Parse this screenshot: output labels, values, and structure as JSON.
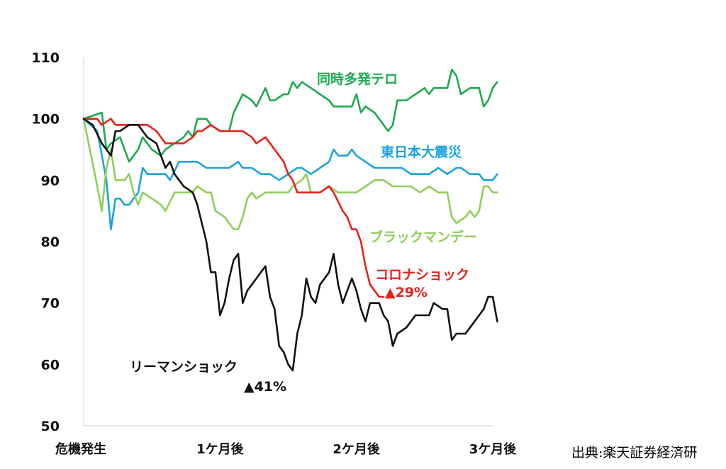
{
  "chart_data": {
    "type": "line",
    "xlabel": "",
    "ylabel": "",
    "xlim": [
      0,
      90
    ],
    "ylim": [
      50,
      110
    ],
    "yticks": [
      50,
      60,
      70,
      80,
      90,
      100,
      110
    ],
    "xticks": [
      {
        "x": 0,
        "label": "危機発生"
      },
      {
        "x": 30,
        "label": "1ケ月後"
      },
      {
        "x": 60,
        "label": "2ケ月後"
      },
      {
        "x": 90,
        "label": "3ケ月後"
      }
    ],
    "grid": false,
    "series": [
      {
        "name": "同時多発テロ",
        "color": "#1fa84f",
        "points": [
          [
            0,
            100
          ],
          [
            4,
            101
          ],
          [
            5,
            95
          ],
          [
            6,
            96
          ],
          [
            8,
            97
          ],
          [
            10,
            93
          ],
          [
            12,
            95
          ],
          [
            13,
            97
          ],
          [
            15,
            95
          ],
          [
            17,
            94
          ],
          [
            18,
            95
          ],
          [
            20,
            96
          ],
          [
            22,
            97
          ],
          [
            23,
            98
          ],
          [
            24,
            97
          ],
          [
            25,
            100
          ],
          [
            26,
            100
          ],
          [
            27,
            100
          ],
          [
            28,
            99
          ],
          [
            30,
            98
          ],
          [
            32,
            98
          ],
          [
            33,
            101
          ],
          [
            35,
            104
          ],
          [
            37,
            103
          ],
          [
            38,
            102
          ],
          [
            40,
            105
          ],
          [
            41,
            103
          ],
          [
            42,
            103
          ],
          [
            44,
            104
          ],
          [
            45,
            104
          ],
          [
            46,
            106
          ],
          [
            47,
            105
          ],
          [
            48,
            106
          ],
          [
            50,
            105
          ],
          [
            52,
            104
          ],
          [
            54,
            103
          ],
          [
            55,
            102
          ],
          [
            57,
            102
          ],
          [
            59,
            102
          ],
          [
            60,
            104
          ],
          [
            61,
            101
          ],
          [
            62,
            102
          ],
          [
            64,
            101
          ],
          [
            66,
            99
          ],
          [
            67,
            98
          ],
          [
            68,
            99
          ],
          [
            69,
            103
          ],
          [
            71,
            103
          ],
          [
            73,
            104
          ],
          [
            75,
            105
          ],
          [
            76,
            104
          ],
          [
            77,
            105
          ],
          [
            79,
            105
          ],
          [
            80,
            105
          ],
          [
            81,
            108
          ],
          [
            82,
            107
          ],
          [
            83,
            104
          ],
          [
            85,
            105
          ],
          [
            87,
            105
          ],
          [
            88,
            102
          ],
          [
            89,
            103
          ],
          [
            90,
            105
          ],
          [
            91,
            106
          ]
        ]
      },
      {
        "name": "東日本大震災",
        "color": "#1aa3e0",
        "points": [
          [
            0,
            100
          ],
          [
            3,
            98
          ],
          [
            5,
            90
          ],
          [
            6,
            82
          ],
          [
            7,
            87
          ],
          [
            8,
            87
          ],
          [
            9,
            86
          ],
          [
            10,
            86
          ],
          [
            12,
            88
          ],
          [
            13,
            92
          ],
          [
            14,
            91
          ],
          [
            15,
            91
          ],
          [
            17,
            91
          ],
          [
            18,
            91
          ],
          [
            19,
            90
          ],
          [
            21,
            93
          ],
          [
            24,
            93
          ],
          [
            25,
            93
          ],
          [
            27,
            92
          ],
          [
            30,
            92
          ],
          [
            32,
            92
          ],
          [
            34,
            93
          ],
          [
            35,
            92
          ],
          [
            37,
            92
          ],
          [
            39,
            91
          ],
          [
            41,
            91
          ],
          [
            43,
            90
          ],
          [
            45,
            91
          ],
          [
            47,
            92
          ],
          [
            48,
            92
          ],
          [
            50,
            91
          ],
          [
            52,
            92
          ],
          [
            54,
            93
          ],
          [
            55,
            95
          ],
          [
            56,
            94
          ],
          [
            58,
            94
          ],
          [
            59,
            95
          ],
          [
            60,
            94
          ],
          [
            62,
            93
          ],
          [
            64,
            92
          ],
          [
            66,
            92
          ],
          [
            67,
            92
          ],
          [
            69,
            92
          ],
          [
            70,
            92
          ],
          [
            72,
            91
          ],
          [
            74,
            91
          ],
          [
            76,
            91
          ],
          [
            78,
            92
          ],
          [
            80,
            91
          ],
          [
            82,
            92
          ],
          [
            83,
            92
          ],
          [
            85,
            91
          ],
          [
            87,
            91
          ],
          [
            88,
            90
          ],
          [
            89,
            90
          ],
          [
            90,
            90
          ],
          [
            91,
            91
          ]
        ]
      },
      {
        "name": "ブラックマンデー",
        "color": "#8dcf5a",
        "points": [
          [
            0,
            100
          ],
          [
            3,
            89
          ],
          [
            4,
            85
          ],
          [
            5,
            92
          ],
          [
            6,
            95
          ],
          [
            7,
            90
          ],
          [
            9,
            90
          ],
          [
            10,
            91
          ],
          [
            11,
            88
          ],
          [
            12,
            86
          ],
          [
            13,
            88
          ],
          [
            15,
            87
          ],
          [
            17,
            86
          ],
          [
            18,
            85
          ],
          [
            20,
            88
          ],
          [
            22,
            88
          ],
          [
            24,
            88
          ],
          [
            25,
            89
          ],
          [
            27,
            88
          ],
          [
            28,
            88
          ],
          [
            29,
            85
          ],
          [
            31,
            84
          ],
          [
            32,
            83
          ],
          [
            33,
            82
          ],
          [
            34,
            82
          ],
          [
            35,
            84
          ],
          [
            36,
            87
          ],
          [
            37,
            88
          ],
          [
            38,
            87
          ],
          [
            40,
            88
          ],
          [
            41,
            88
          ],
          [
            43,
            88
          ],
          [
            45,
            88
          ],
          [
            46,
            89
          ],
          [
            48,
            90
          ],
          [
            49,
            91
          ],
          [
            50,
            88
          ],
          [
            52,
            88
          ],
          [
            54,
            89
          ],
          [
            56,
            88
          ],
          [
            58,
            88
          ],
          [
            60,
            88
          ],
          [
            62,
            89
          ],
          [
            64,
            90
          ],
          [
            66,
            90
          ],
          [
            68,
            89
          ],
          [
            70,
            89
          ],
          [
            72,
            89
          ],
          [
            74,
            88
          ],
          [
            76,
            89
          ],
          [
            78,
            88
          ],
          [
            80,
            88
          ],
          [
            81,
            84
          ],
          [
            82,
            83
          ],
          [
            84,
            84
          ],
          [
            85,
            85
          ],
          [
            86,
            84
          ],
          [
            87,
            85
          ],
          [
            88,
            89
          ],
          [
            89,
            89
          ],
          [
            90,
            88
          ],
          [
            91,
            88
          ]
        ]
      },
      {
        "name": "コロナショック",
        "color": "#e8211b",
        "points": [
          [
            0,
            100
          ],
          [
            3,
            100
          ],
          [
            4,
            99
          ],
          [
            6,
            100
          ],
          [
            7,
            99
          ],
          [
            9,
            99
          ],
          [
            10,
            99
          ],
          [
            12,
            99
          ],
          [
            14,
            99
          ],
          [
            16,
            98
          ],
          [
            18,
            96
          ],
          [
            19,
            96
          ],
          [
            21,
            96
          ],
          [
            22,
            96
          ],
          [
            24,
            97
          ],
          [
            25,
            98
          ],
          [
            26,
            98
          ],
          [
            28,
            99
          ],
          [
            30,
            98
          ],
          [
            32,
            98
          ],
          [
            33,
            98
          ],
          [
            35,
            98
          ],
          [
            37,
            97
          ],
          [
            38,
            96
          ],
          [
            40,
            97
          ],
          [
            41,
            96
          ],
          [
            43,
            94
          ],
          [
            44,
            93
          ],
          [
            45,
            91
          ],
          [
            46,
            90
          ],
          [
            47,
            88
          ],
          [
            48,
            88
          ],
          [
            50,
            88
          ],
          [
            51,
            88
          ],
          [
            52,
            88
          ],
          [
            54,
            89
          ],
          [
            55,
            88
          ],
          [
            57,
            85
          ],
          [
            58,
            84
          ],
          [
            59,
            82
          ],
          [
            60,
            82
          ],
          [
            61,
            80
          ],
          [
            62,
            76
          ],
          [
            63,
            73
          ],
          [
            64,
            72
          ],
          [
            65,
            71
          ],
          [
            66,
            71
          ]
        ]
      },
      {
        "name": "リーマンショック",
        "color": "#111111",
        "points": [
          [
            0,
            100
          ],
          [
            2,
            99
          ],
          [
            4,
            96
          ],
          [
            5,
            95
          ],
          [
            6,
            94
          ],
          [
            7,
            98
          ],
          [
            8,
            98
          ],
          [
            10,
            99
          ],
          [
            12,
            99
          ],
          [
            13,
            98
          ],
          [
            14,
            97
          ],
          [
            16,
            96
          ],
          [
            17,
            94
          ],
          [
            18,
            92
          ],
          [
            19,
            93
          ],
          [
            20,
            91
          ],
          [
            21,
            90
          ],
          [
            22,
            89
          ],
          [
            24,
            88
          ],
          [
            25,
            86
          ],
          [
            26,
            83
          ],
          [
            27,
            80
          ],
          [
            28,
            75
          ],
          [
            29,
            75
          ],
          [
            30,
            68
          ],
          [
            31,
            70
          ],
          [
            32,
            74
          ],
          [
            33,
            77
          ],
          [
            34,
            78
          ],
          [
            35,
            70
          ],
          [
            36,
            72
          ],
          [
            38,
            74
          ],
          [
            40,
            76
          ],
          [
            41,
            71
          ],
          [
            42,
            69
          ],
          [
            43,
            63
          ],
          [
            44,
            62
          ],
          [
            45,
            60
          ],
          [
            46,
            59
          ],
          [
            47,
            65
          ],
          [
            48,
            68
          ],
          [
            49,
            74
          ],
          [
            50,
            71
          ],
          [
            51,
            70
          ],
          [
            52,
            73
          ],
          [
            54,
            75
          ],
          [
            55,
            78
          ],
          [
            56,
            73
          ],
          [
            57,
            70
          ],
          [
            58,
            72
          ],
          [
            59,
            74
          ],
          [
            60,
            72
          ],
          [
            61,
            69
          ],
          [
            62,
            67
          ],
          [
            63,
            70
          ],
          [
            65,
            70
          ],
          [
            66,
            68
          ],
          [
            67,
            67
          ],
          [
            68,
            63
          ],
          [
            69,
            65
          ],
          [
            71,
            66
          ],
          [
            73,
            68
          ],
          [
            75,
            68
          ],
          [
            76,
            68
          ],
          [
            77,
            70
          ],
          [
            79,
            69
          ],
          [
            80,
            69
          ],
          [
            81,
            64
          ],
          [
            82,
            65
          ],
          [
            83,
            65
          ],
          [
            84,
            65
          ],
          [
            86,
            67
          ],
          [
            88,
            69
          ],
          [
            89,
            71
          ],
          [
            90,
            71
          ],
          [
            91,
            67
          ]
        ]
      }
    ],
    "series_labels": [
      {
        "text": "同時多発テロ",
        "color": "#1fa84f"
      },
      {
        "text": "東日本大震災",
        "color": "#1aa3e0"
      },
      {
        "text": "ブラックマンデー",
        "color": "#8dcf5a"
      },
      {
        "text": "コロナショック",
        "color": "#e8211b"
      },
      {
        "text": "リーマンショック",
        "color": "#111111"
      }
    ],
    "annotations": [
      {
        "text": "▲29%",
        "color": "#e8211b"
      },
      {
        "text": "▲41%",
        "color": "#111111"
      }
    ]
  },
  "source": "出典:楽天証券経済研"
}
